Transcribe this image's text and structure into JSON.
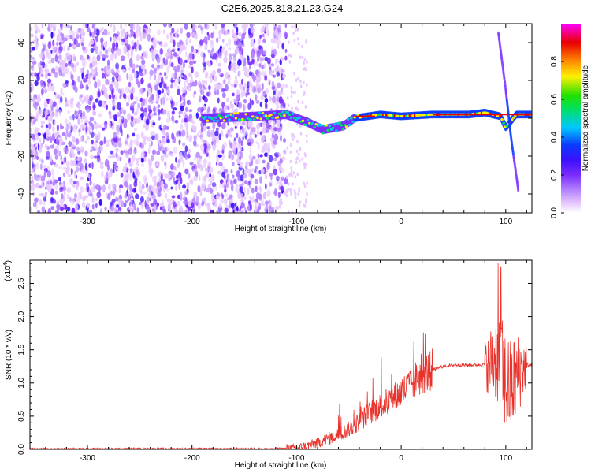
{
  "title": "C2E6.2025.318.21.23.G24",
  "colors": {
    "snr_line": "#e8332c",
    "colormap": [
      "#ffffff",
      "#e8c8ff",
      "#b482ff",
      "#7a2cff",
      "#3a10ff",
      "#0a3cff",
      "#00c8ff",
      "#00e060",
      "#20e000",
      "#fff000",
      "#ff8c00",
      "#e80000",
      "#ff00ff"
    ]
  },
  "chart_data": [
    {
      "type": "heatmap",
      "title": "C2E6.2025.318.21.23.G24",
      "xlabel": "Height of straight line (km)",
      "ylabel": "Frequency (Hz)",
      "xlim": [
        -355,
        125
      ],
      "ylim": [
        -50,
        50
      ],
      "xticks": [
        -300,
        -200,
        -100,
        0,
        100
      ],
      "yticks": [
        -40,
        -20,
        0,
        20,
        40
      ],
      "colorbar": {
        "label": "Normalized spectral amplitude",
        "range": [
          0,
          1
        ],
        "ticks": [
          "0.0",
          "0.2",
          "0.4",
          "0.6",
          "0.8"
        ]
      },
      "features": {
        "noise_region_x": [
          -355,
          -110
        ],
        "ridge": [
          [
            -190,
            0
          ],
          [
            -140,
            1
          ],
          [
            -110,
            2
          ],
          [
            -90,
            -2
          ],
          [
            -75,
            -6
          ],
          [
            -55,
            -4
          ],
          [
            -45,
            0
          ],
          [
            -20,
            2
          ],
          [
            0,
            1
          ],
          [
            30,
            2
          ],
          [
            65,
            2
          ],
          [
            80,
            3
          ],
          [
            95,
            1
          ],
          [
            100,
            -5
          ],
          [
            110,
            2
          ],
          [
            125,
            2
          ]
        ],
        "tilted_streak": [
          [
            93,
            45
          ],
          [
            100,
            15
          ],
          [
            105,
            -10
          ],
          [
            112,
            -38
          ]
        ]
      }
    },
    {
      "type": "line",
      "xlabel": "Height of straight line (km)",
      "ylabel": "SNR (10 * v/v)",
      "y_multiplier": "(x10",
      "y_multiplier_exp": "4",
      "xlim": [
        -355,
        125
      ],
      "ylim": [
        0,
        2.85
      ],
      "xticks": [
        -300,
        -200,
        -100,
        0,
        100
      ],
      "yticks": [
        "0.0",
        "0.5",
        "1.0",
        "1.5",
        "2.0",
        "2.5"
      ],
      "series": [
        {
          "values_x": [
            -355,
            -300,
            -250,
            -200,
            -150,
            -120,
            -100,
            -90,
            -80,
            -70,
            -60,
            -50,
            -40,
            -30,
            -20,
            -10,
            0,
            10,
            20,
            30,
            40,
            50,
            60,
            70,
            80,
            85,
            90,
            95,
            100,
            105,
            110,
            115,
            120,
            125
          ],
          "values_y": [
            0.01,
            0.01,
            0.01,
            0.01,
            0.01,
            0.01,
            0.02,
            0.05,
            0.1,
            0.16,
            0.22,
            0.3,
            0.42,
            0.55,
            0.65,
            0.75,
            0.85,
            1.0,
            1.12,
            1.2,
            1.25,
            1.27,
            1.27,
            1.27,
            1.28,
            1.3,
            1.4,
            1.3,
            1.0,
            0.9,
            1.1,
            1.2,
            1.27,
            1.27
          ]
        }
      ]
    }
  ]
}
